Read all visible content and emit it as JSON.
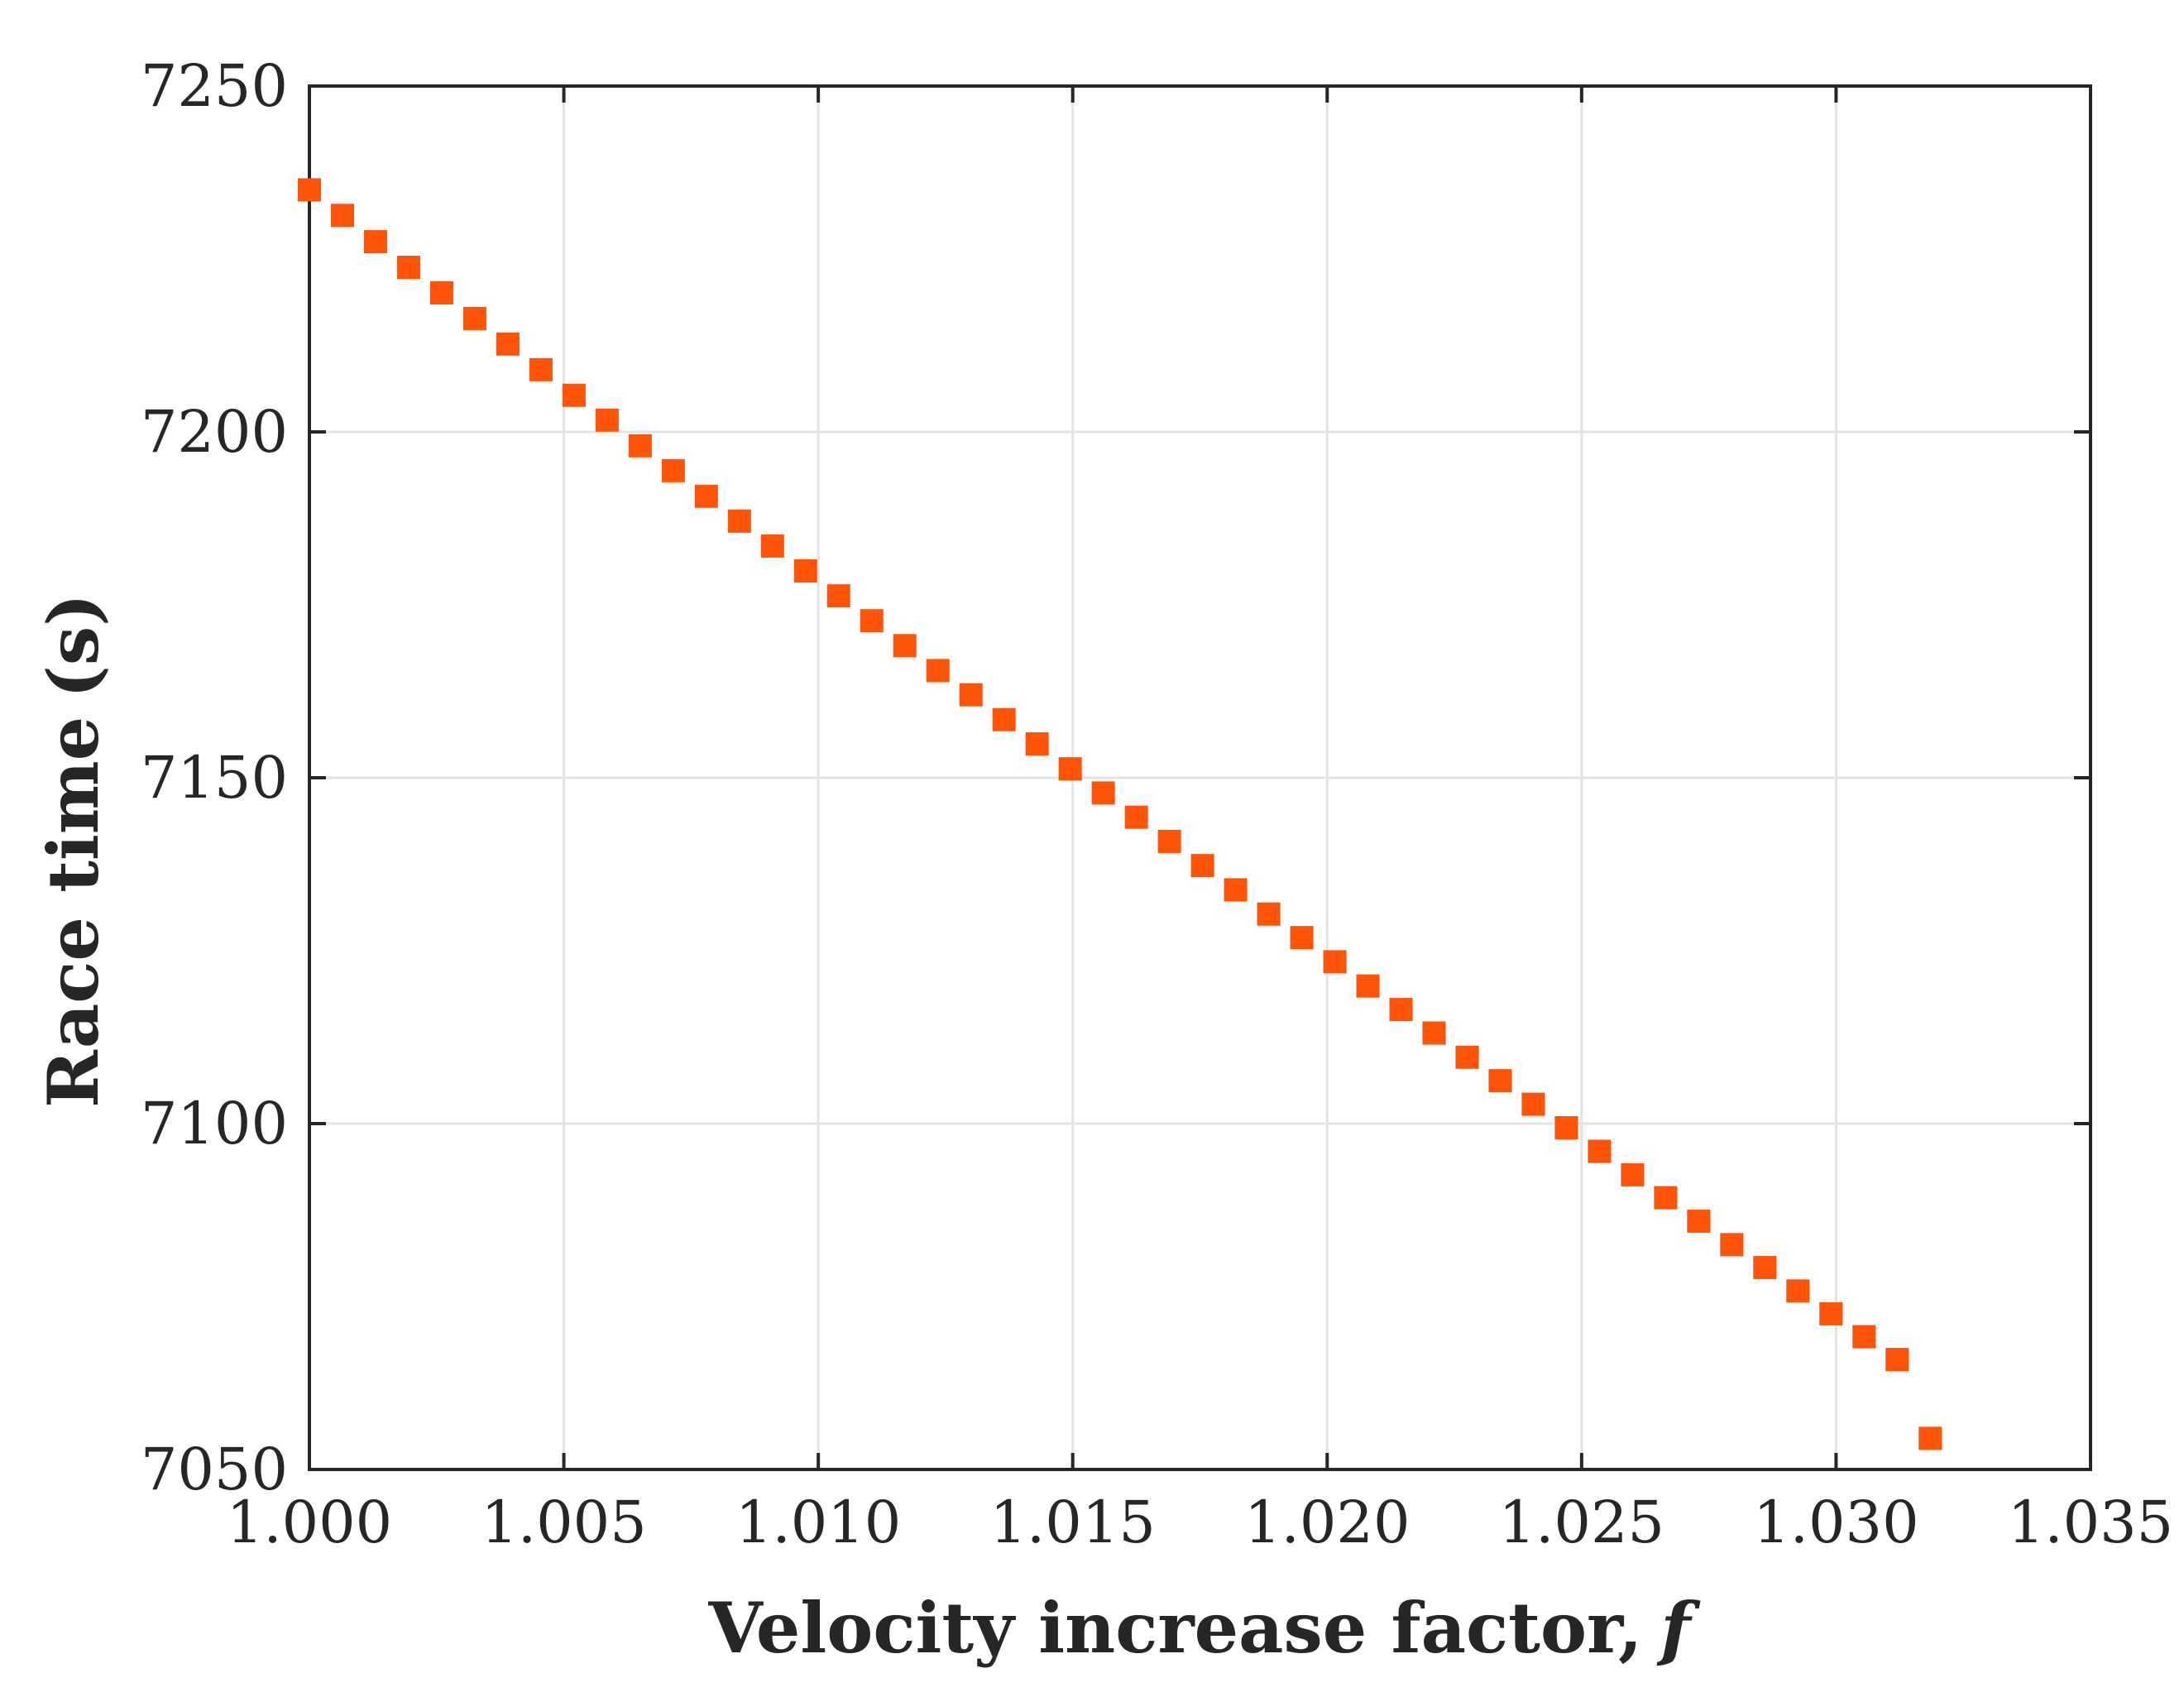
{
  "chart_data": {
    "type": "scatter",
    "title": "",
    "xlabel": "Velocity increase factor,",
    "xlabel_var": "f",
    "ylabel": "Race time",
    "ylabel_var": "(s)",
    "xlim": [
      1.0,
      1.035
    ],
    "ylim": [
      7050,
      7250
    ],
    "x_ticks": [
      1.0,
      1.005,
      1.01,
      1.015,
      1.02,
      1.025,
      1.03,
      1.035
    ],
    "x_tick_labels": [
      "1.000",
      "1.005",
      "1.010",
      "1.015",
      "1.020",
      "1.025",
      "1.030",
      "1.035"
    ],
    "y_ticks": [
      7050,
      7100,
      7150,
      7200,
      7250
    ],
    "y_tick_labels": [
      "7050",
      "7100",
      "7150",
      "7200",
      "7250"
    ],
    "grid": true,
    "marker": "square",
    "marker_color": "#ff5308",
    "series": [
      {
        "x": [
          1.0,
          1.00065,
          1.0013,
          1.00195,
          1.0026,
          1.00325,
          1.0039,
          1.00455,
          1.0052,
          1.00585,
          1.0065,
          1.00715,
          1.0078,
          1.00845,
          1.0091,
          1.00975,
          1.0104,
          1.01105,
          1.0117,
          1.01235,
          1.013,
          1.01365,
          1.0143,
          1.01495,
          1.0156,
          1.01625,
          1.0169,
          1.01755,
          1.0182,
          1.01885,
          1.0195,
          1.02015,
          1.0208,
          1.02145,
          1.0221,
          1.02275,
          1.0234,
          1.02405,
          1.0247,
          1.02535,
          1.026,
          1.02665,
          1.0273,
          1.02795,
          1.0286,
          1.02925,
          1.0299,
          1.03055,
          1.0312,
          1.03185
        ],
        "y": [
          7235.0,
          7231.3,
          7227.5,
          7223.8,
          7220.1,
          7216.4,
          7212.7,
          7209.0,
          7205.3,
          7201.7,
          7198.0,
          7194.4,
          7190.7,
          7187.1,
          7183.5,
          7179.9,
          7176.3,
          7172.7,
          7169.1,
          7165.5,
          7162.0,
          7158.4,
          7154.9,
          7151.3,
          7147.8,
          7144.3,
          7140.8,
          7137.3,
          7133.8,
          7130.3,
          7126.9,
          7123.4,
          7119.9,
          7116.5,
          7113.1,
          7109.6,
          7106.2,
          7102.8,
          7099.4,
          7096.0,
          7092.6,
          7089.3,
          7085.9,
          7082.5,
          7079.2,
          7075.8,
          7072.5,
          7069.2,
          7065.9,
          7054.5
        ]
      }
    ]
  }
}
